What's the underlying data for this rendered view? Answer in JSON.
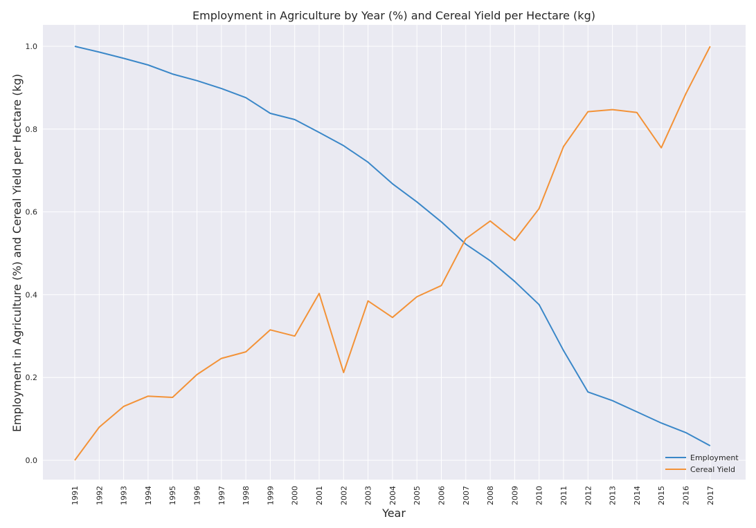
{
  "chart_data": {
    "type": "line",
    "title": "Employment in Agriculture by Year (%) and Cereal Yield per Hectare (kg)",
    "xlabel": "Year",
    "ylabel": "Employment in Agriculture (%) and Cereal Yield per Hectare (kg)",
    "x": [
      "1991",
      "1992",
      "1993",
      "1994",
      "1995",
      "1996",
      "1997",
      "1998",
      "1999",
      "2000",
      "2001",
      "2002",
      "2003",
      "2004",
      "2005",
      "2006",
      "2007",
      "2008",
      "2009",
      "2010",
      "2011",
      "2012",
      "2013",
      "2014",
      "2015",
      "2016",
      "2017"
    ],
    "yticks": [
      "0.0",
      "0.2",
      "0.4",
      "0.6",
      "0.8",
      "1.0"
    ],
    "ylim": [
      -0.05,
      1.05
    ],
    "grid": true,
    "legend_position": "lower-right",
    "series": [
      {
        "name": "Employment",
        "color": "#3a87c8",
        "values": [
          1.0,
          0.986,
          0.971,
          0.955,
          0.933,
          0.917,
          0.898,
          0.876,
          0.838,
          0.823,
          0.792,
          0.76,
          0.72,
          0.668,
          0.624,
          0.576,
          0.522,
          0.482,
          0.432,
          0.376,
          0.265,
          0.165,
          0.144,
          0.117,
          0.09,
          0.067,
          0.035
        ]
      },
      {
        "name": "Cereal Yield",
        "color": "#f39237",
        "values": [
          0.0,
          0.08,
          0.13,
          0.155,
          0.152,
          0.207,
          0.246,
          0.262,
          0.315,
          0.3,
          0.403,
          0.212,
          0.385,
          0.345,
          0.395,
          0.422,
          0.535,
          0.578,
          0.531,
          0.608,
          0.758,
          0.842,
          0.847,
          0.84,
          0.755,
          0.885,
          1.0
        ]
      }
    ]
  }
}
